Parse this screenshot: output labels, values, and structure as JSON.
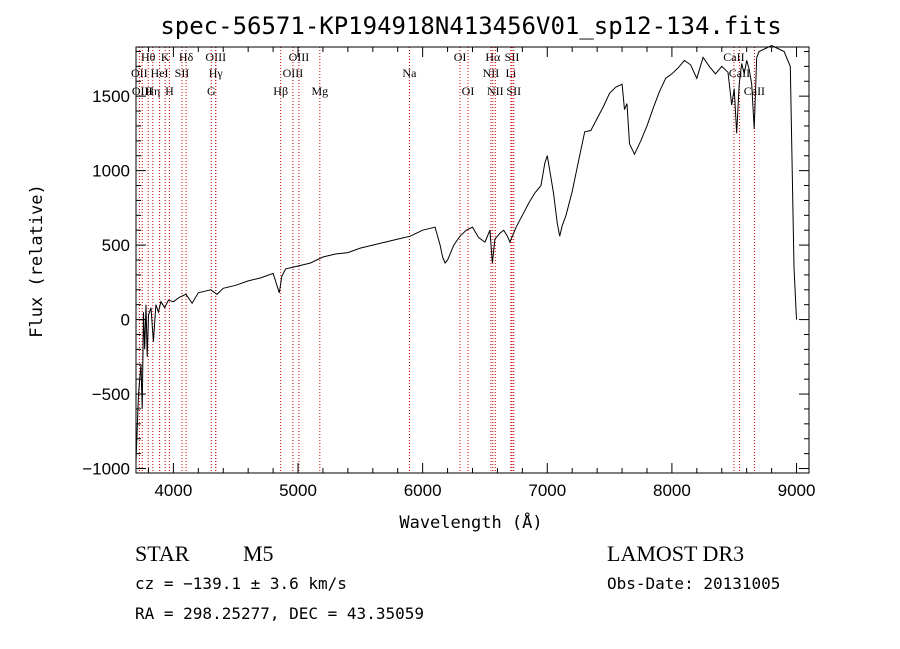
{
  "chart_data": {
    "type": "line",
    "title": "spec-56571-KP194918N413456V01_sp12-134.fits",
    "xlabel": "Wavelength (Å)",
    "ylabel": "Flux (relative)",
    "xlim": [
      3700,
      9100
    ],
    "ylim": [
      -1030,
      1830
    ],
    "x_ticks": [
      4000,
      5000,
      6000,
      7000,
      8000,
      9000
    ],
    "x_tick_labels": [
      "4000",
      "5000",
      "6000",
      "7000",
      "8000",
      "9000"
    ],
    "y_ticks": [
      -1000,
      -500,
      0,
      500,
      1000,
      1500
    ],
    "y_tick_labels": [
      "−1000",
      "−500",
      "0",
      "500",
      "1000",
      "1500"
    ],
    "line_color": "#000000",
    "marker_color": "#cc0000",
    "series": [
      {
        "x": [
          3700,
          3720,
          3740,
          3750,
          3760,
          3770,
          3780,
          3790,
          3800,
          3820,
          3840,
          3860,
          3880,
          3900,
          3930,
          3960,
          4000,
          4050,
          4100,
          4150,
          4200,
          4250,
          4300,
          4350,
          4400,
          4500,
          4600,
          4700,
          4800,
          4850,
          4870,
          4900,
          5000,
          5100,
          5200,
          5300,
          5400,
          5500,
          5600,
          5700,
          5800,
          5900,
          6000,
          6100,
          6140,
          6160,
          6180,
          6200,
          6250,
          6300,
          6350,
          6400,
          6450,
          6500,
          6540,
          6560,
          6580,
          6600,
          6620,
          6650,
          6680,
          6700,
          6720,
          6750,
          6800,
          6850,
          6900,
          6950,
          6980,
          7000,
          7050,
          7080,
          7100,
          7120,
          7150,
          7200,
          7250,
          7300,
          7350,
          7400,
          7450,
          7500,
          7550,
          7600,
          7620,
          7640,
          7660,
          7700,
          7750,
          7800,
          7850,
          7900,
          7950,
          8000,
          8050,
          8100,
          8150,
          8200,
          8250,
          8300,
          8350,
          8400,
          8450,
          8480,
          8500,
          8520,
          8540,
          8560,
          8580,
          8600,
          8620,
          8640,
          8660,
          8680,
          8700,
          8750,
          8800,
          8850,
          8900,
          8950,
          8980,
          9000
        ],
        "y": [
          -950,
          -500,
          -300,
          -600,
          50,
          -200,
          100,
          -250,
          30,
          80,
          -150,
          100,
          50,
          120,
          80,
          130,
          120,
          150,
          170,
          110,
          180,
          190,
          200,
          170,
          210,
          230,
          260,
          280,
          310,
          180,
          290,
          340,
          360,
          380,
          420,
          440,
          450,
          480,
          500,
          520,
          540,
          560,
          600,
          620,
          500,
          420,
          380,
          400,
          500,
          560,
          600,
          620,
          550,
          520,
          600,
          380,
          540,
          560,
          580,
          600,
          560,
          520,
          560,
          620,
          700,
          780,
          850,
          900,
          1050,
          1100,
          850,
          650,
          560,
          630,
          700,
          860,
          1060,
          1260,
          1270,
          1350,
          1430,
          1520,
          1560,
          1580,
          1410,
          1450,
          1180,
          1110,
          1200,
          1300,
          1420,
          1530,
          1620,
          1650,
          1690,
          1740,
          1710,
          1620,
          1760,
          1700,
          1650,
          1700,
          1660,
          1440,
          1550,
          1250,
          1580,
          1720,
          1650,
          1740,
          1680,
          1580,
          1280,
          1760,
          1800,
          1820,
          1840,
          1820,
          1800,
          1700,
          350,
          0
        ]
      }
    ],
    "lines": [
      {
        "label": "Hθ",
        "x": 3798,
        "row": 1
      },
      {
        "label": "OII",
        "x": 3727,
        "row": 2
      },
      {
        "label": "OIII",
        "x": 3750,
        "row": 3
      },
      {
        "label": "Hη",
        "x": 3835,
        "row": 3
      },
      {
        "label": "HeI",
        "x": 3889,
        "row": 2
      },
      {
        "label": "K",
        "x": 3934,
        "row": 1
      },
      {
        "label": "H",
        "x": 3968,
        "row": 3
      },
      {
        "label": "SII",
        "x": 4069,
        "row": 2
      },
      {
        "label": "Hδ",
        "x": 4102,
        "row": 1
      },
      {
        "label": "OIII",
        "x": 4340,
        "row": 1
      },
      {
        "label": "Hγ",
        "x": 4340,
        "row": 2
      },
      {
        "label": "G",
        "x": 4304,
        "row": 3
      },
      {
        "label": "Hβ",
        "x": 4861,
        "row": 3
      },
      {
        "label": "OIII",
        "x": 5007,
        "row": 1
      },
      {
        "label": "OIII",
        "x": 4959,
        "row": 2
      },
      {
        "label": "Mg",
        "x": 5175,
        "row": 3
      },
      {
        "label": "Na",
        "x": 5894,
        "row": 2
      },
      {
        "label": "OI",
        "x": 6300,
        "row": 1
      },
      {
        "label": "OI",
        "x": 6364,
        "row": 3
      },
      {
        "label": "Hα",
        "x": 6563,
        "row": 1
      },
      {
        "label": "NII",
        "x": 6548,
        "row": 2
      },
      {
        "label": "NII",
        "x": 6583,
        "row": 3
      },
      {
        "label": "SII",
        "x": 6717,
        "row": 1
      },
      {
        "label": "Li",
        "x": 6708,
        "row": 2
      },
      {
        "label": "SII",
        "x": 6731,
        "row": 3
      },
      {
        "label": "CaII",
        "x": 8498,
        "row": 1
      },
      {
        "label": "CaII",
        "x": 8542,
        "row": 2
      },
      {
        "label": "CaII",
        "x": 8662,
        "row": 3
      }
    ]
  },
  "info": {
    "class": "STAR",
    "subclass": "M5",
    "survey": "LAMOST DR3",
    "cz": "cz = −139.1 ± 3.6 km/s",
    "obsdate": "Obs-Date: 20131005",
    "radec": "RA = 298.25277, DEC =  43.35059"
  }
}
